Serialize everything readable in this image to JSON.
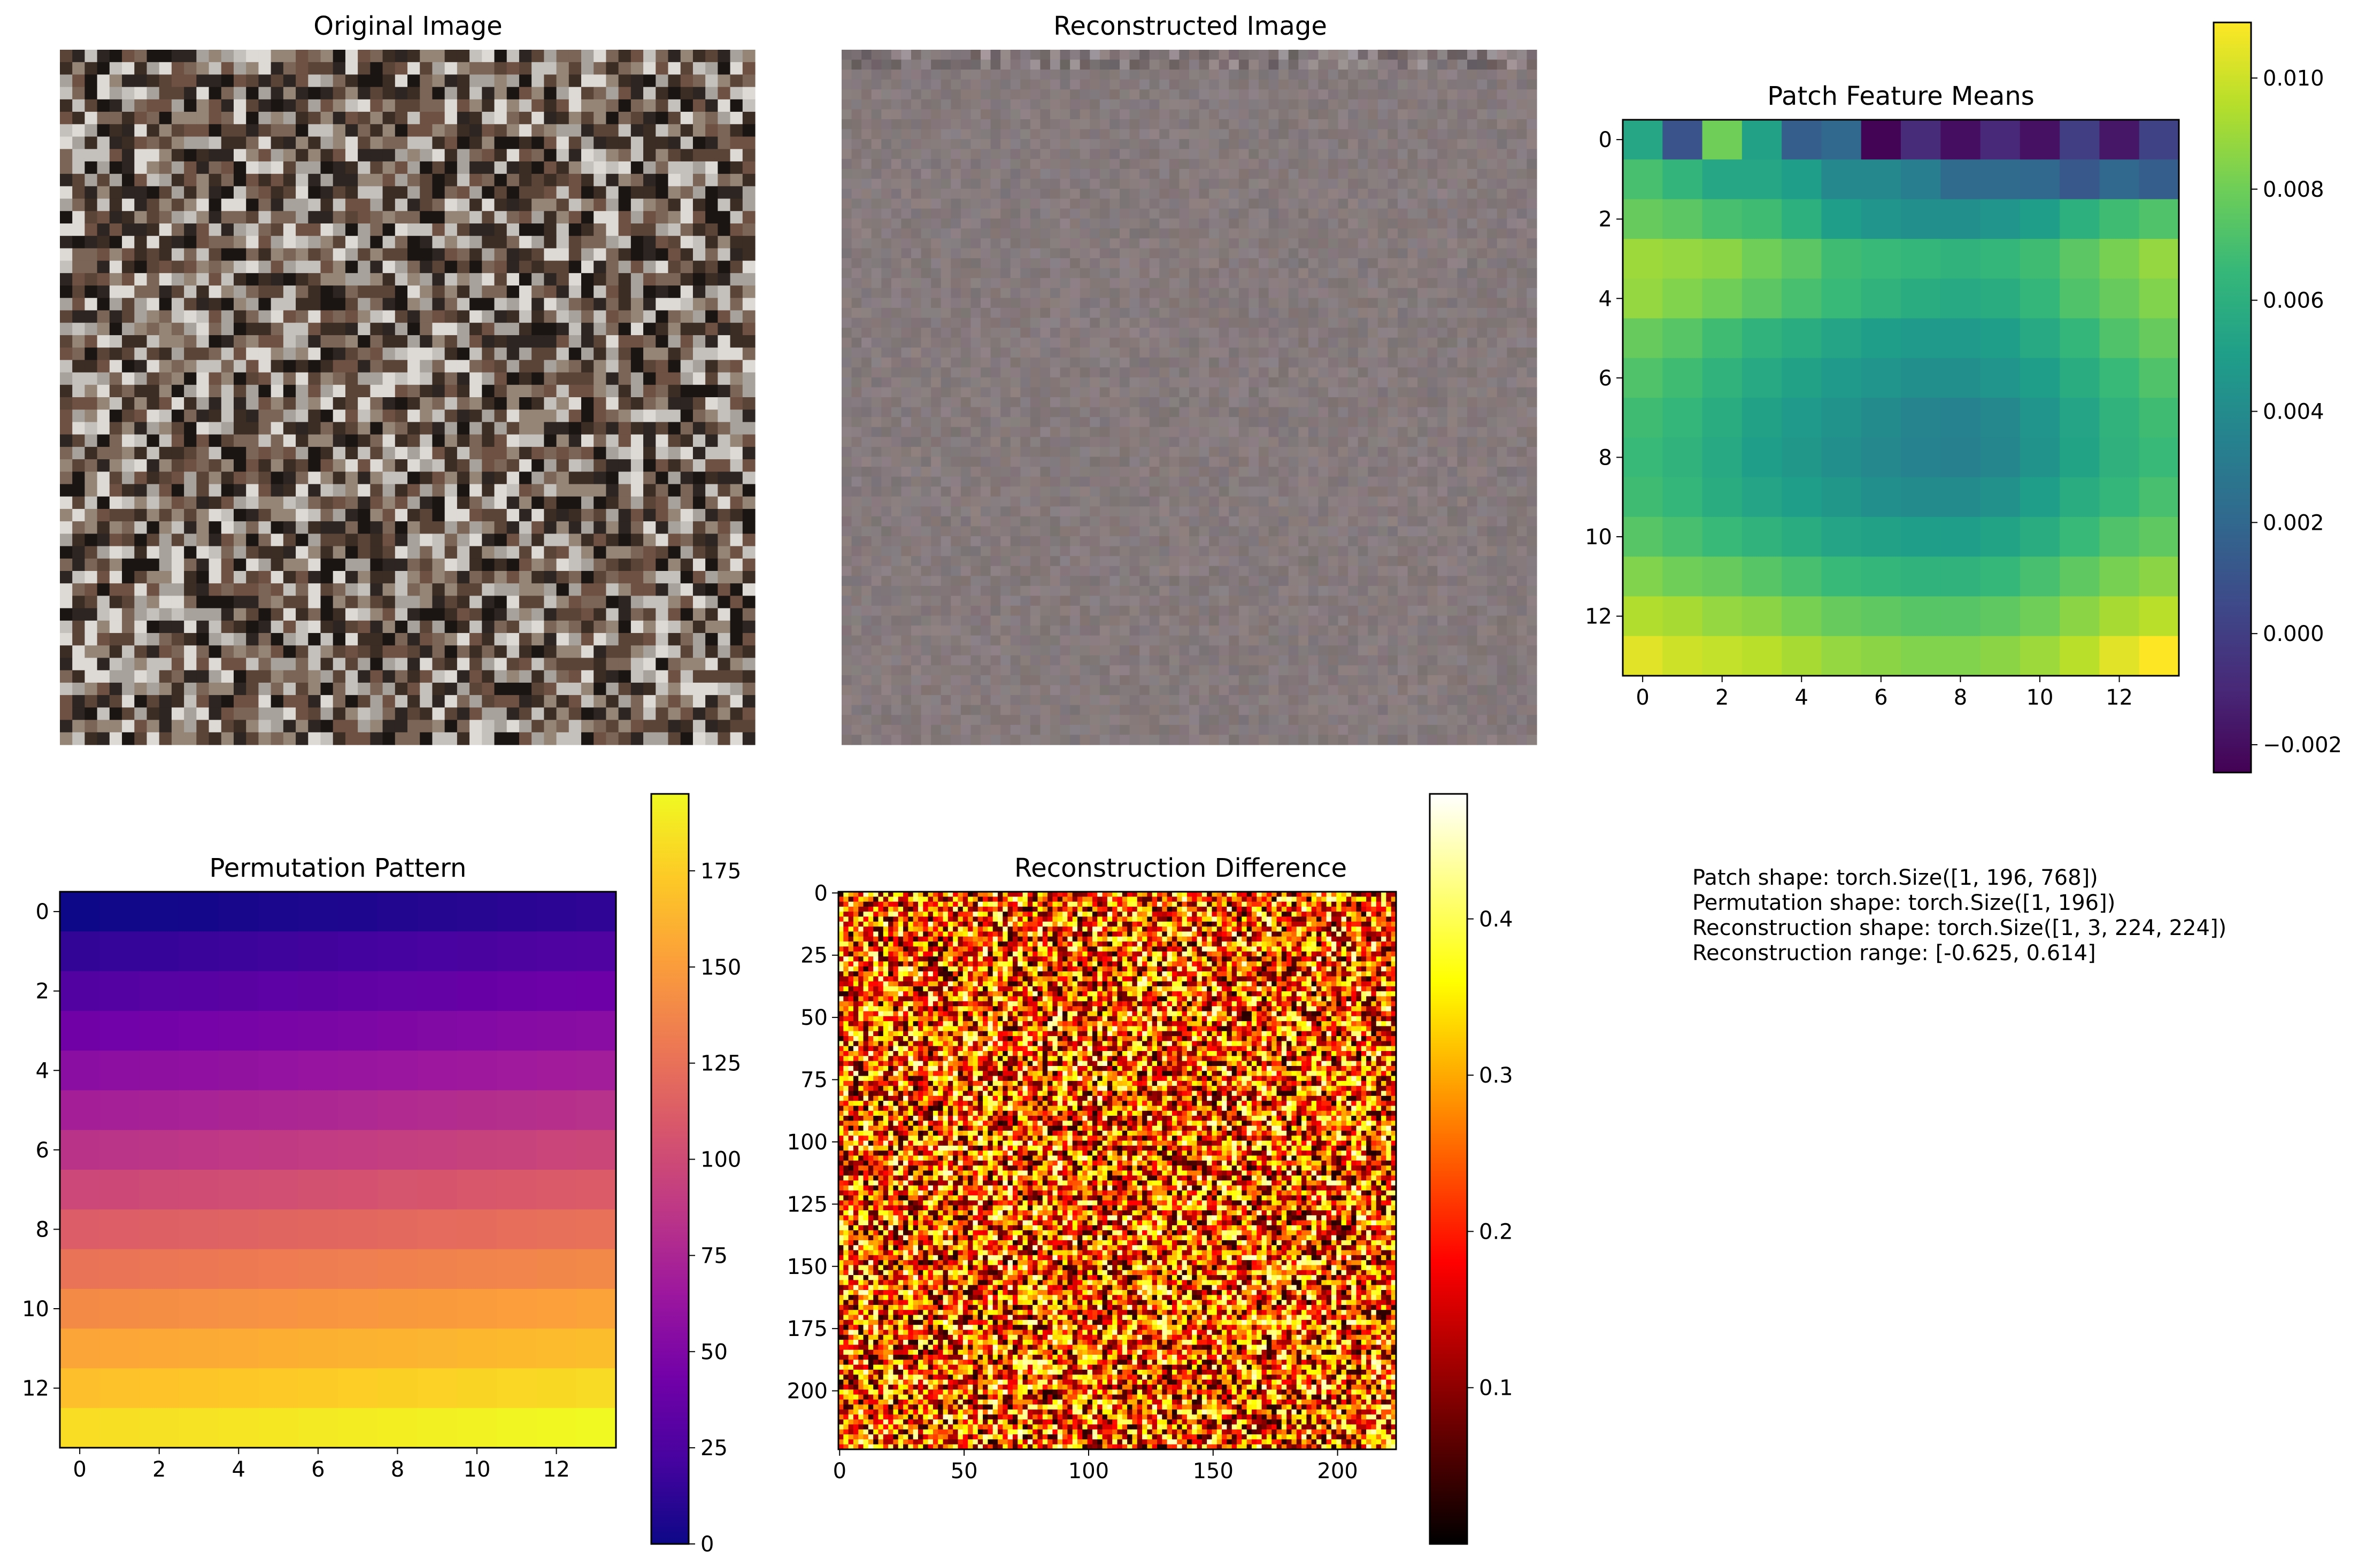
{
  "panels": {
    "original": {
      "title": "Original Image"
    },
    "reconstructed": {
      "title": "Reconstructed Image"
    },
    "info_lines": [
      "Patch shape: torch.Size([1, 196, 768])",
      "Permutation shape: torch.Size([1, 196])",
      "Reconstruction shape: torch.Size([1, 3, 224, 224])",
      "Reconstruction range: [-0.625, 0.614]"
    ]
  },
  "colors": {
    "original_palette": [
      "#1a1512",
      "#3b2c24",
      "#5a4438",
      "#7b6556",
      "#948576",
      "#a8a29c",
      "#c4c0bc",
      "#ddd9d5",
      "#6e5142",
      "#2d2521"
    ],
    "reconstructed_base": "#857a7c"
  },
  "chart_data": [
    {
      "type": "heatmap",
      "title": "Patch Feature Means",
      "colormap": "viridis",
      "grid_size": [
        14,
        14
      ],
      "x_ticks": [
        "0",
        "2",
        "4",
        "6",
        "8",
        "10",
        "12"
      ],
      "y_ticks": [
        "0",
        "2",
        "4",
        "6",
        "8",
        "10",
        "12"
      ],
      "colorbar_range": [
        -0.0025,
        0.011
      ],
      "colorbar_ticks": [
        "0.010",
        "0.008",
        "0.006",
        "0.004",
        "0.002",
        "0.000",
        "−0.002"
      ],
      "colorbar_tick_values": [
        0.01,
        0.008,
        0.006,
        0.004,
        0.002,
        0.0,
        -0.002
      ],
      "values": [
        [
          0.0055,
          0.001,
          0.008,
          0.0052,
          0.0015,
          0.002,
          -0.0024,
          -0.0008,
          -0.002,
          -0.001,
          -0.0019,
          0.0,
          -0.0017,
          0.0002
        ],
        [
          0.007,
          0.0063,
          0.0055,
          0.0055,
          0.005,
          0.0038,
          0.0038,
          0.0032,
          0.0022,
          0.0022,
          0.002,
          0.0012,
          0.002,
          0.0015
        ],
        [
          0.0078,
          0.0075,
          0.007,
          0.0068,
          0.006,
          0.005,
          0.0045,
          0.0042,
          0.0042,
          0.0045,
          0.005,
          0.006,
          0.0068,
          0.0072
        ],
        [
          0.009,
          0.0088,
          0.0086,
          0.008,
          0.0075,
          0.0068,
          0.0066,
          0.0064,
          0.0062,
          0.0064,
          0.0068,
          0.0075,
          0.0082,
          0.0088
        ],
        [
          0.0088,
          0.0084,
          0.008,
          0.0075,
          0.007,
          0.0066,
          0.0062,
          0.0058,
          0.0056,
          0.0058,
          0.0064,
          0.0072,
          0.0078,
          0.0084
        ],
        [
          0.0078,
          0.0074,
          0.0068,
          0.0062,
          0.0058,
          0.0054,
          0.005,
          0.0048,
          0.0048,
          0.005,
          0.0056,
          0.0064,
          0.0072,
          0.0078
        ],
        [
          0.0072,
          0.0068,
          0.0062,
          0.0056,
          0.0052,
          0.0048,
          0.0045,
          0.0042,
          0.0042,
          0.0045,
          0.005,
          0.0058,
          0.0066,
          0.0072
        ],
        [
          0.0068,
          0.0064,
          0.0058,
          0.0052,
          0.0048,
          0.0044,
          0.004,
          0.0036,
          0.0035,
          0.0038,
          0.0045,
          0.0054,
          0.0062,
          0.0068
        ],
        [
          0.0066,
          0.0062,
          0.0056,
          0.005,
          0.0046,
          0.0042,
          0.0038,
          0.0035,
          0.0034,
          0.0037,
          0.0044,
          0.0053,
          0.0061,
          0.0066
        ],
        [
          0.0068,
          0.0064,
          0.0058,
          0.0054,
          0.005,
          0.0046,
          0.0042,
          0.004,
          0.004,
          0.0043,
          0.005,
          0.0058,
          0.0064,
          0.007
        ],
        [
          0.0074,
          0.007,
          0.0066,
          0.0062,
          0.0058,
          0.0054,
          0.0052,
          0.005,
          0.005,
          0.0053,
          0.0058,
          0.0066,
          0.0072,
          0.0076
        ],
        [
          0.0084,
          0.008,
          0.0078,
          0.0074,
          0.007,
          0.0066,
          0.0064,
          0.0062,
          0.0062,
          0.0065,
          0.007,
          0.0076,
          0.0082,
          0.0086
        ],
        [
          0.0094,
          0.0092,
          0.0088,
          0.0086,
          0.0082,
          0.0078,
          0.0076,
          0.0074,
          0.0074,
          0.0076,
          0.008,
          0.0086,
          0.0092,
          0.0096
        ],
        [
          0.0104,
          0.01,
          0.0098,
          0.0096,
          0.0092,
          0.0088,
          0.0086,
          0.0084,
          0.0084,
          0.0086,
          0.009,
          0.0096,
          0.0104,
          0.011
        ]
      ]
    },
    {
      "type": "heatmap",
      "title": "Permutation Pattern",
      "colormap": "plasma",
      "grid_size": [
        14,
        14
      ],
      "x_ticks": [
        "0",
        "2",
        "4",
        "6",
        "8",
        "10",
        "12"
      ],
      "y_ticks": [
        "0",
        "2",
        "4",
        "6",
        "8",
        "10",
        "12"
      ],
      "colorbar_range": [
        0,
        195
      ],
      "colorbar_ticks": [
        "175",
        "150",
        "125",
        "100",
        "75",
        "50",
        "25",
        "0"
      ],
      "colorbar_tick_values": [
        175,
        150,
        125,
        100,
        75,
        50,
        25,
        0
      ],
      "values_rule": "value[row][col] = row * 14 + col"
    },
    {
      "type": "heatmap",
      "title": "Reconstruction Difference",
      "colormap": "hot",
      "grid_size": [
        224,
        224
      ],
      "x_ticks": [
        "0",
        "50",
        "100",
        "150",
        "200"
      ],
      "x_tick_values": [
        0,
        50,
        100,
        150,
        200
      ],
      "y_ticks": [
        "0",
        "25",
        "50",
        "75",
        "100",
        "125",
        "150",
        "175",
        "200"
      ],
      "y_tick_values": [
        0,
        25,
        50,
        75,
        100,
        125,
        150,
        175,
        200
      ],
      "colorbar_range": [
        0.0,
        0.48
      ],
      "colorbar_ticks": [
        "0.4",
        "0.3",
        "0.2",
        "0.1"
      ],
      "colorbar_tick_values": [
        0.4,
        0.3,
        0.2,
        0.1
      ]
    }
  ]
}
